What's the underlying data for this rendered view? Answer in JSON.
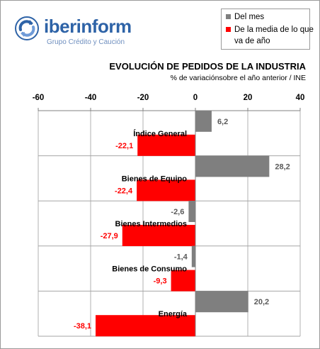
{
  "logo": {
    "name": "iberinform",
    "subtitle": "Grupo Crédito y Caución"
  },
  "legend": {
    "items": [
      {
        "label": "Del mes",
        "color": "#7f7f7f"
      },
      {
        "label": "De la media de lo que va de año",
        "color": "#ff0000"
      }
    ]
  },
  "chart_data": {
    "type": "bar",
    "orientation": "horizontal",
    "title": "EVOLUCIÓN DE PEDIDOS DE LA INDUSTRIA",
    "subtitle": "% de variaciónsobre el año anterior / INE",
    "categories": [
      "Índice General",
      "Bienes de Equipo",
      "Bienes Intermedios",
      "Bienes de Consumo",
      "Energía"
    ],
    "series": [
      {
        "name": "Del mes",
        "color": "#7f7f7f",
        "label_color": "#595959",
        "values": [
          6.2,
          28.2,
          -2.6,
          -1.4,
          20.2
        ]
      },
      {
        "name": "De la media de lo que va de año",
        "color": "#ff0000",
        "label_color": "#ff0000",
        "values": [
          -22.1,
          -22.4,
          -27.9,
          -9.3,
          -38.1
        ]
      }
    ],
    "value_labels": [
      [
        "6,2",
        "28,2",
        "-2,6",
        "-1,4",
        "20,2"
      ],
      [
        "-22,1",
        "-22,4",
        "-27,9",
        "-9,3",
        "-38,1"
      ]
    ],
    "xlim": [
      -60,
      40
    ],
    "xticks": [
      -60,
      -40,
      -20,
      0,
      20,
      40
    ],
    "xtick_labels": [
      "-60",
      "-40",
      "-20",
      "0",
      "20",
      "40"
    ],
    "axis_position": "top",
    "grid": true
  }
}
